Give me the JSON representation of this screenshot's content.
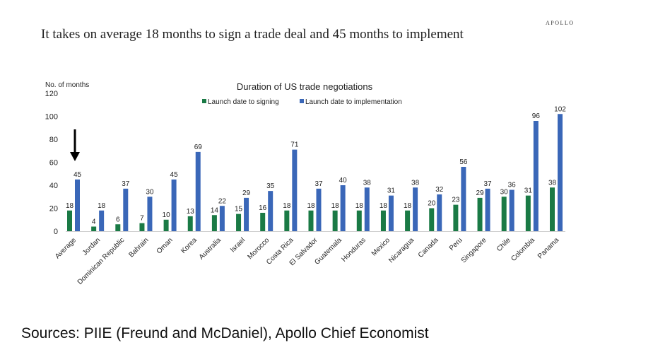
{
  "brand": "APOLLO",
  "headline": "It takes on average 18 months to sign a trade deal and 45 months to implement",
  "sources": "Sources: PIIE (Freund and McDaniel), Apollo Chief Economist",
  "colors": {
    "signing": "#1a7a45",
    "implementation": "#3a67b8",
    "text": "#222222",
    "arrow": "#000000"
  },
  "chart_data": {
    "type": "bar",
    "title": "Duration of US trade negotiations",
    "ylabel": "No. of months",
    "xlabel": "",
    "ylim": [
      0,
      120
    ],
    "yticks": [
      0,
      20,
      40,
      60,
      80,
      100,
      120
    ],
    "legend_position": "top-center",
    "annotation": "down-arrow pointing at Average",
    "categories": [
      "Average",
      "Jordan",
      "Dominican Republic",
      "Bahrain",
      "Oman",
      "Korea",
      "Australia",
      "Israel",
      "Morocco",
      "Costa Rica",
      "El Salvador",
      "Guatemala",
      "Honduras",
      "Mexico",
      "Nicaragua",
      "Canada",
      "Peru",
      "Singapore",
      "Chile",
      "Colombia",
      "Panama"
    ],
    "series": [
      {
        "name": "Launch date to signing",
        "values": [
          18,
          4,
          6,
          7,
          10,
          13,
          14,
          15,
          16,
          18,
          18,
          18,
          18,
          18,
          18,
          20,
          23,
          29,
          30,
          31,
          38
        ]
      },
      {
        "name": "Launch date to implementation",
        "values": [
          45,
          18,
          37,
          30,
          45,
          69,
          22,
          29,
          35,
          71,
          37,
          40,
          38,
          31,
          38,
          32,
          56,
          37,
          36,
          96,
          102
        ]
      }
    ]
  }
}
